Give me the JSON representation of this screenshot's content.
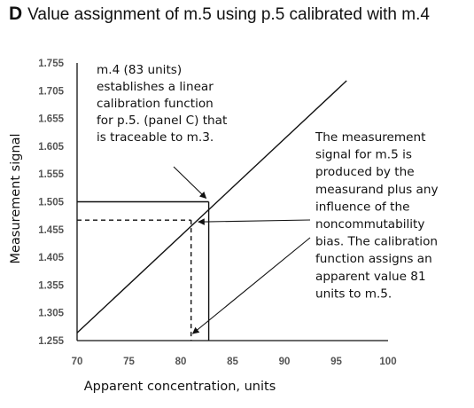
{
  "panel": {
    "letter": "D",
    "title": "Value assignment of m.5 using p.5 calibrated with m.4"
  },
  "chart_data": {
    "type": "line",
    "xlabel": "Apparent concentration, units",
    "ylabel": "Measurement signal",
    "xlim": [
      70,
      100
    ],
    "ylim": [
      1.255,
      1.755
    ],
    "x_ticks": [
      "70",
      "75",
      "80",
      "85",
      "90",
      "95",
      "100"
    ],
    "y_ticks": [
      "1.255",
      "1.305",
      "1.355",
      "1.405",
      "1.455",
      "1.505",
      "1.555",
      "1.605",
      "1.655",
      "1.705",
      "1.755"
    ],
    "grid": false,
    "series": [
      {
        "style": "solid",
        "x": [
          70,
          96
        ],
        "y": [
          1.269,
          1.723
        ]
      }
    ],
    "reference_lines": [
      {
        "style": "solid",
        "x": 82.7,
        "y": 1.505
      },
      {
        "style": "dashed",
        "x": 81,
        "y": 1.472
      }
    ],
    "annotations": [
      {
        "lines": [
          "m.4 (83 units)",
          "establishes a linear",
          "calibration function",
          "for p.5. (panel C) that",
          "is traceable to m.3."
        ],
        "arrow_to": {
          "x": 82.7,
          "y": 1.505
        }
      },
      {
        "lines": [
          "The measurement",
          "signal for m.5 is",
          "produced by the",
          "measurand plus any",
          "influence of the",
          "noncommutability",
          "bias. The calibration",
          "function assigns an",
          "apparent value 81",
          "units to m.5."
        ],
        "arrows_to": [
          {
            "x": 81.7,
            "y": 1.472
          },
          {
            "x": 80.9,
            "y": 1.258
          }
        ]
      }
    ]
  }
}
